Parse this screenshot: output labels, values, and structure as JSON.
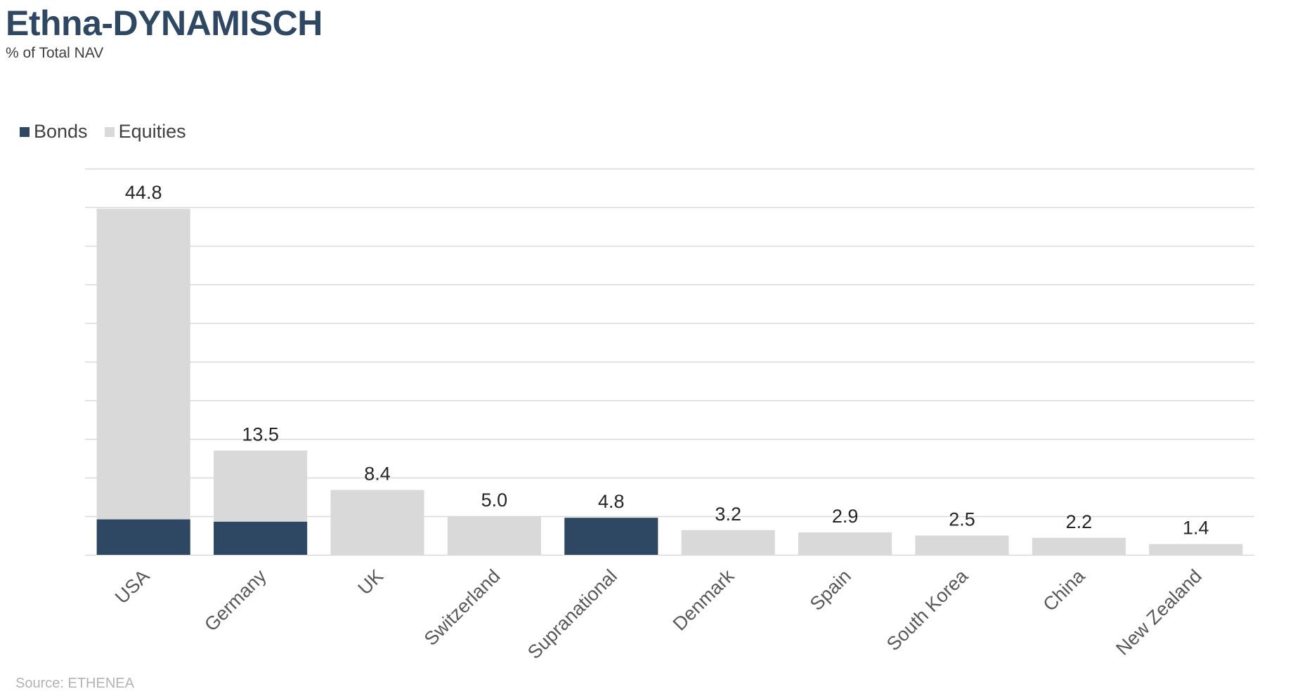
{
  "title": "Ethna-DYNAMISCH",
  "subtitle": "% of Total NAV",
  "source": "Source: ETHENEA",
  "colors": {
    "bonds": "#2e4864",
    "equities": "#d9d9d9",
    "gridline": "#d9d9d9",
    "title": "#2e4864"
  },
  "chart_data": {
    "type": "bar",
    "stacked": true,
    "title": "Ethna-DYNAMISCH",
    "subtitle": "% of Total NAV",
    "xlabel": "",
    "ylabel": "",
    "categories": [
      "USA",
      "Germany",
      "UK",
      "Switzerland",
      "Supranational",
      "Denmark",
      "Spain",
      "South Korea",
      "China",
      "New Zealand"
    ],
    "series": [
      {
        "name": "Bonds",
        "values": [
          4.6,
          4.3,
          0,
          0,
          4.8,
          0,
          0,
          0,
          0,
          0
        ]
      },
      {
        "name": "Equities",
        "values": [
          40.2,
          9.2,
          8.4,
          5.0,
          0,
          3.2,
          2.9,
          2.5,
          2.2,
          1.4
        ]
      }
    ],
    "totals": [
      "44.8",
      "13.5",
      "8.4",
      "5.0",
      "4.8",
      "3.2",
      "2.9",
      "2.5",
      "2.2",
      "1.4"
    ],
    "ylim": [
      0,
      50
    ],
    "grid": true,
    "legend_position": "top-left"
  }
}
